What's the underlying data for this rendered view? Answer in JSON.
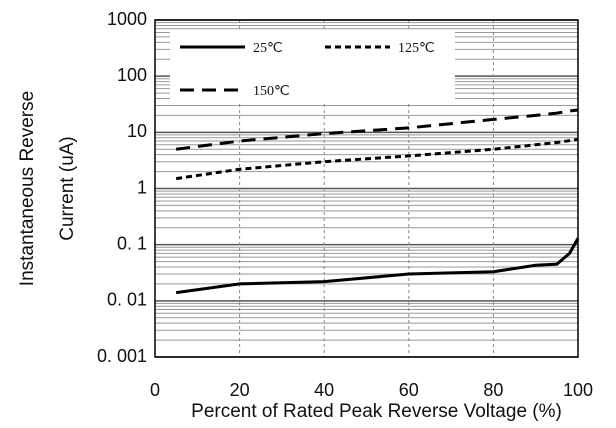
{
  "chart_data": {
    "type": "line",
    "ylabel": [
      "Instantaneous Reverse",
      "Current (uA)"
    ],
    "xlabel": "Percent of Rated Peak Reverse Voltage (%)",
    "x": [
      5,
      20,
      40,
      60,
      80,
      90,
      95,
      98,
      100
    ],
    "series": [
      {
        "name": "25℃",
        "color": "#000000",
        "dash": "none",
        "values": [
          0.014,
          0.02,
          0.022,
          0.03,
          0.033,
          0.043,
          0.045,
          0.07,
          0.13
        ]
      },
      {
        "name": "125℃",
        "color": "#000000",
        "dash": "6 4",
        "values": [
          1.5,
          2.2,
          3,
          3.8,
          5,
          6,
          6.6,
          7.1,
          7.5
        ]
      },
      {
        "name": "150℃",
        "color": "#000000",
        "dash": "14 8",
        "values": [
          5,
          7,
          9.5,
          12,
          17,
          20,
          22,
          24,
          25
        ]
      }
    ],
    "xlim": [
      0,
      100
    ],
    "xticks": [
      0,
      20,
      40,
      60,
      80,
      100
    ],
    "ylim": [
      0.001,
      1000
    ],
    "log_y": true,
    "yticks": [
      1000,
      100,
      10,
      1,
      {
        "value": 0.1,
        "label": "0. 1"
      },
      {
        "value": 0.01,
        "label": "0. 01"
      },
      {
        "value": 0.001,
        "label": "0. 001"
      }
    ],
    "grid": true,
    "minor_grid": true
  }
}
